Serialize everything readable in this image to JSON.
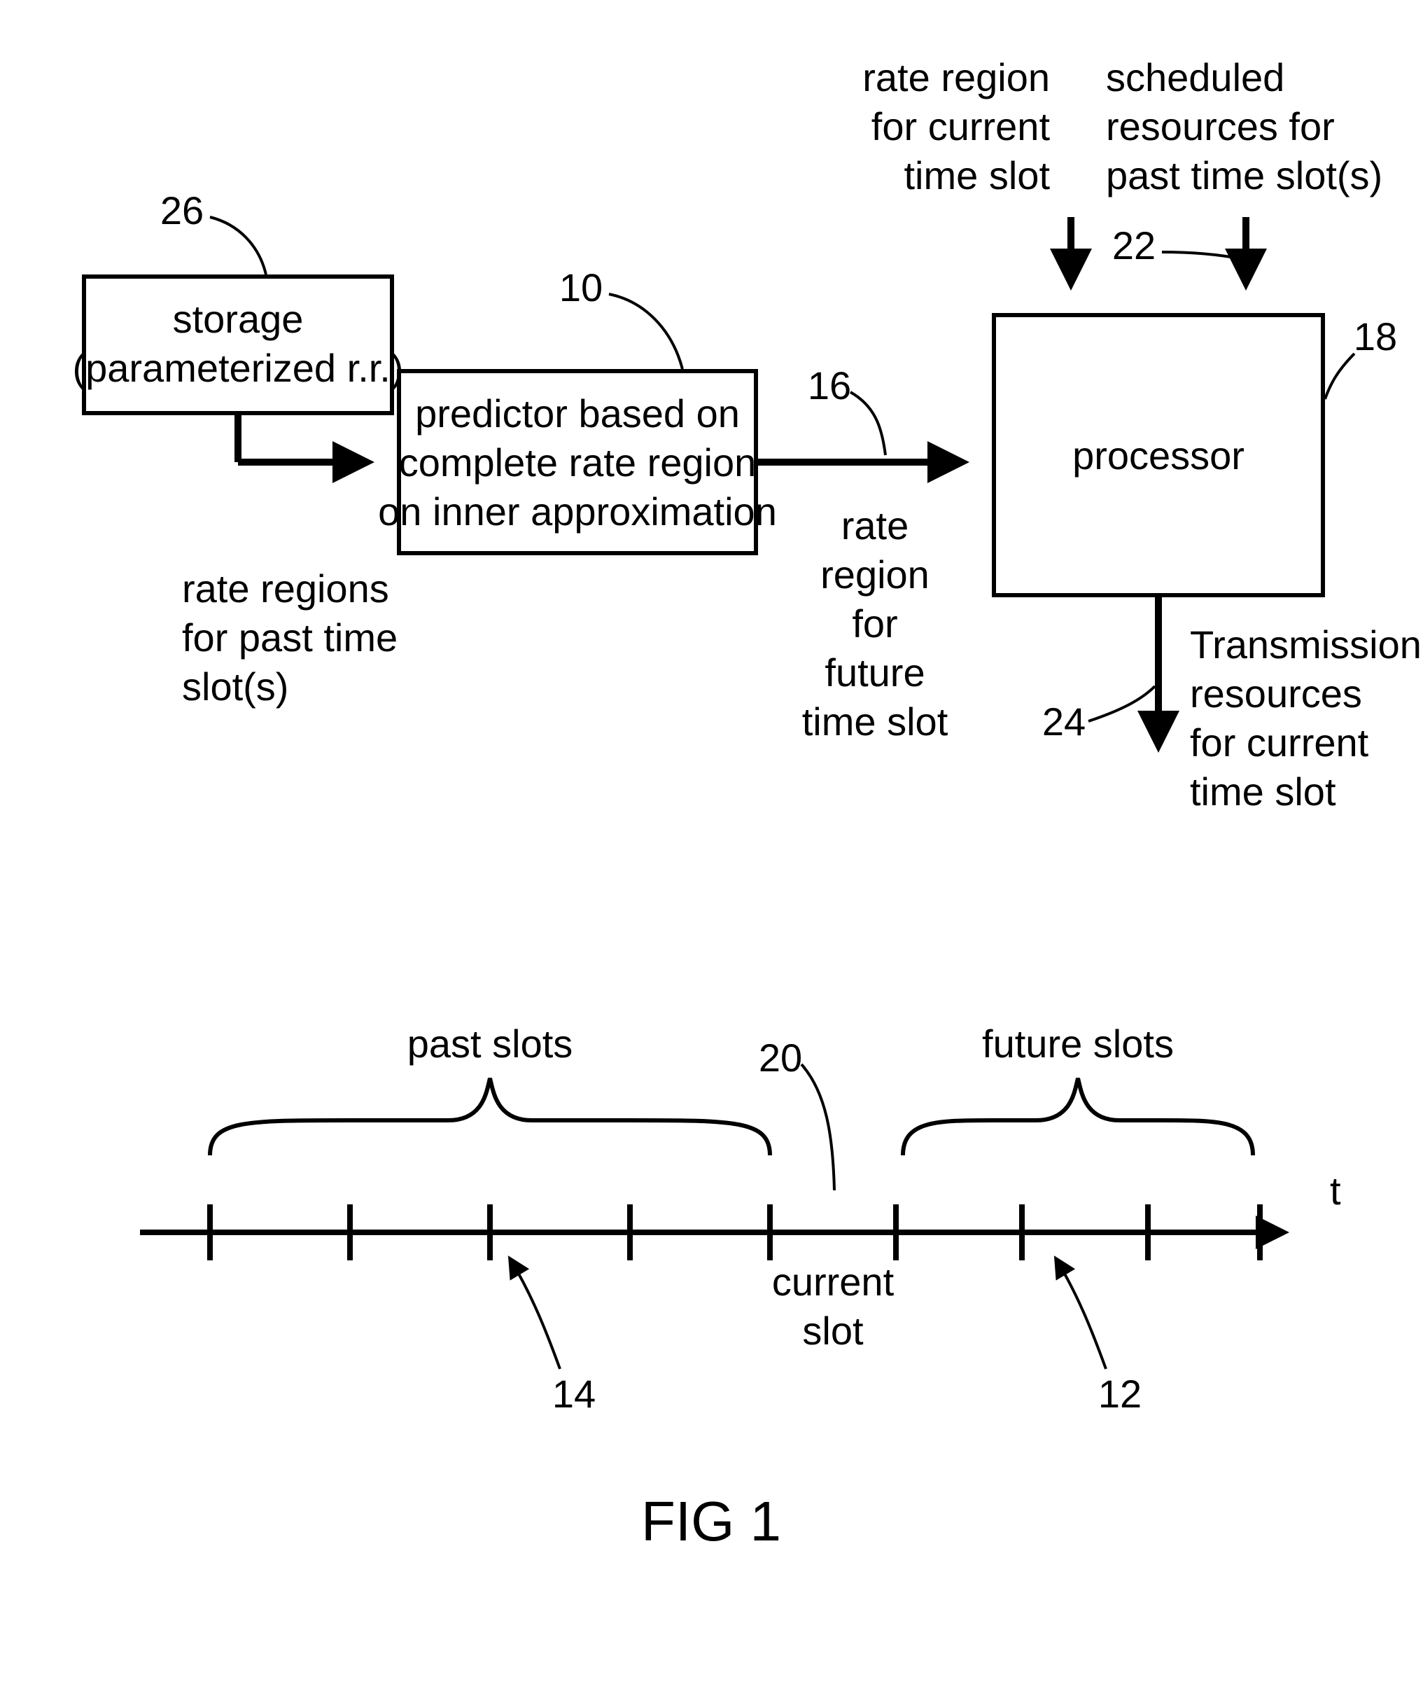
{
  "figure_label": "FIG 1",
  "storage": {
    "ref": "26",
    "line1": "storage",
    "line2": "(parameterized r.r.)"
  },
  "predictor": {
    "ref": "10",
    "line1": "predictor based on",
    "line2": "complete rate region",
    "line3": "on inner approximation"
  },
  "processor": {
    "ref": "18",
    "label": "processor"
  },
  "arrows": {
    "storage_to_predictor": {
      "line1": "rate regions",
      "line2": "for past time",
      "line3": "slot(s)"
    },
    "predictor_to_processor": {
      "ref": "16",
      "line1": "rate",
      "line2": "region",
      "line3": "for",
      "line4": "future",
      "line5": "time slot"
    },
    "top_left_input": {
      "line1": "rate region",
      "line2": "for current",
      "line3": "time slot"
    },
    "top_right_input": {
      "ref": "22",
      "line1": "scheduled",
      "line2": "resources for",
      "line3": "past time slot(s)"
    },
    "processor_output": {
      "ref": "24",
      "line1": "Transmission",
      "line2": "resources",
      "line3": "for current",
      "line4": "time slot"
    }
  },
  "timeline": {
    "t_label": "t",
    "past": {
      "label": "past slots",
      "ref": "14"
    },
    "current": {
      "label1": "current",
      "label2": "slot",
      "ref": "20"
    },
    "future": {
      "label": "future slots",
      "ref": "12"
    }
  },
  "style": {
    "stroke": "#000000",
    "stroke_width_box": 6,
    "stroke_width_arrow": 10,
    "stroke_width_lead": 4,
    "stroke_width_timeline": 8,
    "font_size_label": 56,
    "font_size_fig": 80,
    "font_size_ref": 56
  }
}
